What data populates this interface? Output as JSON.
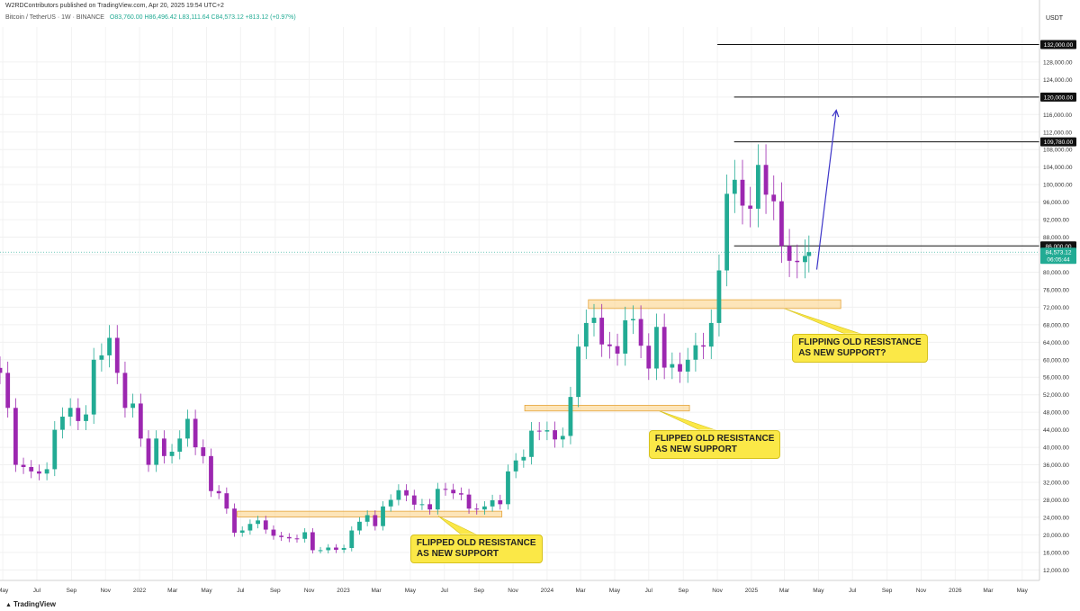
{
  "header": {
    "published": "W2RDContributors published on TradingView.com, Apr 20, 2025 19:54 UTC+2",
    "symbol": "Bitcoin / TetherUS · 1W · BINANCE",
    "ohlc": "O83,760.00 H86,496.42 L83,111.64 C84,573.12 +813.12 (+0.97%)"
  },
  "colors": {
    "up": "#22ab94",
    "down": "#9c27b0",
    "zone": "#fbd38a",
    "callout": "#fbe847",
    "arrow": "#3d35c8"
  },
  "footer": {
    "logo": "TradingView"
  },
  "chart_data": {
    "type": "candlestick",
    "currency_label": "USDT",
    "ylim": [
      9600,
      136000
    ],
    "y_ticks": [
      12000,
      16000,
      20000,
      24000,
      28000,
      32000,
      36000,
      40000,
      44000,
      48000,
      52000,
      56000,
      60000,
      64000,
      68000,
      72000,
      76000,
      80000,
      84000,
      88000,
      92000,
      96000,
      100000,
      104000,
      108000,
      112000,
      116000,
      120000,
      124000,
      128000
    ],
    "y_tick_labels": [
      "12,000.00",
      "16,000.00",
      "20,000.00",
      "24,000.00",
      "28,000.00",
      "32,000.00",
      "36,000.00",
      "40,000.00",
      "44,000.00",
      "48,000.00",
      "52,000.00",
      "56,000.00",
      "60,000.00",
      "64,000.00",
      "68,000.00",
      "72,000.00",
      "76,000.00",
      "80,000.00",
      "84,000.00",
      "88,000.00",
      "92,000.00",
      "96,000.00",
      "100,000.00",
      "104,000.00",
      "108,000.00",
      "112,000.00",
      "116,000.00",
      "120,000.00",
      "124,000.00",
      "128,000.00"
    ],
    "x_range": [
      "2021-04-26",
      "2026-06-01"
    ],
    "x_ticks": [
      {
        "date": "2021-05-01",
        "label": "May"
      },
      {
        "date": "2021-07-01",
        "label": "Jul"
      },
      {
        "date": "2021-09-01",
        "label": "Sep"
      },
      {
        "date": "2021-11-01",
        "label": "Nov"
      },
      {
        "date": "2022-01-01",
        "label": "2022"
      },
      {
        "date": "2022-03-01",
        "label": "Mar"
      },
      {
        "date": "2022-05-01",
        "label": "May"
      },
      {
        "date": "2022-07-01",
        "label": "Jul"
      },
      {
        "date": "2022-09-01",
        "label": "Sep"
      },
      {
        "date": "2022-11-01",
        "label": "Nov"
      },
      {
        "date": "2023-01-01",
        "label": "2023"
      },
      {
        "date": "2023-03-01",
        "label": "Mar"
      },
      {
        "date": "2023-05-01",
        "label": "May"
      },
      {
        "date": "2023-07-01",
        "label": "Jul"
      },
      {
        "date": "2023-09-01",
        "label": "Sep"
      },
      {
        "date": "2023-11-01",
        "label": "Nov"
      },
      {
        "date": "2024-01-01",
        "label": "2024"
      },
      {
        "date": "2024-03-01",
        "label": "Mar"
      },
      {
        "date": "2024-05-01",
        "label": "May"
      },
      {
        "date": "2024-07-01",
        "label": "Jul"
      },
      {
        "date": "2024-09-01",
        "label": "Sep"
      },
      {
        "date": "2024-11-01",
        "label": "Nov"
      },
      {
        "date": "2025-01-01",
        "label": "2025"
      },
      {
        "date": "2025-03-01",
        "label": "Mar"
      },
      {
        "date": "2025-05-01",
        "label": "May"
      },
      {
        "date": "2025-07-01",
        "label": "Jul"
      },
      {
        "date": "2025-09-01",
        "label": "Sep"
      },
      {
        "date": "2025-11-01",
        "label": "Nov"
      },
      {
        "date": "2026-01-01",
        "label": "2026"
      },
      {
        "date": "2026-03-01",
        "label": "Mar"
      },
      {
        "date": "2026-05-01",
        "label": "May"
      }
    ],
    "series": [
      {
        "date": "2021-04-26",
        "close": 57000
      },
      {
        "date": "2021-05-10",
        "close": 49000
      },
      {
        "date": "2021-05-24",
        "close": 36000
      },
      {
        "date": "2021-06-07",
        "close": 35500
      },
      {
        "date": "2021-06-21",
        "close": 34500
      },
      {
        "date": "2021-07-05",
        "close": 34000
      },
      {
        "date": "2021-07-19",
        "close": 35000
      },
      {
        "date": "2021-08-02",
        "close": 44000
      },
      {
        "date": "2021-08-16",
        "close": 47000
      },
      {
        "date": "2021-08-30",
        "close": 49000
      },
      {
        "date": "2021-09-13",
        "close": 46000
      },
      {
        "date": "2021-09-27",
        "close": 47500
      },
      {
        "date": "2021-10-11",
        "close": 60000
      },
      {
        "date": "2021-10-25",
        "close": 61000
      },
      {
        "date": "2021-11-08",
        "close": 65000
      },
      {
        "date": "2021-11-22",
        "close": 57000
      },
      {
        "date": "2021-12-06",
        "close": 49000
      },
      {
        "date": "2021-12-20",
        "close": 50000
      },
      {
        "date": "2022-01-03",
        "close": 42000
      },
      {
        "date": "2022-01-17",
        "close": 36000
      },
      {
        "date": "2022-01-31",
        "close": 42000
      },
      {
        "date": "2022-02-14",
        "close": 38000
      },
      {
        "date": "2022-02-28",
        "close": 39000
      },
      {
        "date": "2022-03-14",
        "close": 42000
      },
      {
        "date": "2022-03-28",
        "close": 46500
      },
      {
        "date": "2022-04-11",
        "close": 40000
      },
      {
        "date": "2022-04-25",
        "close": 38000
      },
      {
        "date": "2022-05-09",
        "close": 30000
      },
      {
        "date": "2022-05-23",
        "close": 29500
      },
      {
        "date": "2022-06-06",
        "close": 26000
      },
      {
        "date": "2022-06-20",
        "close": 20500
      },
      {
        "date": "2022-07-04",
        "close": 21000
      },
      {
        "date": "2022-07-18",
        "close": 22500
      },
      {
        "date": "2022-08-01",
        "close": 23300
      },
      {
        "date": "2022-08-15",
        "close": 21200
      },
      {
        "date": "2022-08-29",
        "close": 19800
      },
      {
        "date": "2022-09-12",
        "close": 19500
      },
      {
        "date": "2022-09-26",
        "close": 19200
      },
      {
        "date": "2022-10-10",
        "close": 19100
      },
      {
        "date": "2022-10-24",
        "close": 20600
      },
      {
        "date": "2022-11-07",
        "close": 16500
      },
      {
        "date": "2022-11-21",
        "close": 16500
      },
      {
        "date": "2022-12-05",
        "close": 17100
      },
      {
        "date": "2022-12-19",
        "close": 16600
      },
      {
        "date": "2023-01-02",
        "close": 17000
      },
      {
        "date": "2023-01-16",
        "close": 21000
      },
      {
        "date": "2023-01-30",
        "close": 23000
      },
      {
        "date": "2023-02-13",
        "close": 24500
      },
      {
        "date": "2023-02-27",
        "close": 22000
      },
      {
        "date": "2023-03-13",
        "close": 26500
      },
      {
        "date": "2023-03-27",
        "close": 28000
      },
      {
        "date": "2023-04-10",
        "close": 30200
      },
      {
        "date": "2023-04-24",
        "close": 29000
      },
      {
        "date": "2023-05-08",
        "close": 26900
      },
      {
        "date": "2023-05-22",
        "close": 27000
      },
      {
        "date": "2023-06-05",
        "close": 25800
      },
      {
        "date": "2023-06-19",
        "close": 30500
      },
      {
        "date": "2023-07-03",
        "close": 30300
      },
      {
        "date": "2023-07-17",
        "close": 29500
      },
      {
        "date": "2023-07-31",
        "close": 29200
      },
      {
        "date": "2023-08-14",
        "close": 26000
      },
      {
        "date": "2023-08-28",
        "close": 25800
      },
      {
        "date": "2023-09-11",
        "close": 26500
      },
      {
        "date": "2023-09-25",
        "close": 27900
      },
      {
        "date": "2023-10-09",
        "close": 27000
      },
      {
        "date": "2023-10-23",
        "close": 34500
      },
      {
        "date": "2023-11-06",
        "close": 37000
      },
      {
        "date": "2023-11-20",
        "close": 37800
      },
      {
        "date": "2023-12-04",
        "close": 43800
      },
      {
        "date": "2023-12-18",
        "close": 43600
      },
      {
        "date": "2024-01-01",
        "close": 43900
      },
      {
        "date": "2024-01-15",
        "close": 41800
      },
      {
        "date": "2024-01-29",
        "close": 42600
      },
      {
        "date": "2024-02-12",
        "close": 51500
      },
      {
        "date": "2024-02-26",
        "close": 63000
      },
      {
        "date": "2024-03-11",
        "close": 68400
      },
      {
        "date": "2024-03-25",
        "close": 69600
      },
      {
        "date": "2024-04-08",
        "close": 63500
      },
      {
        "date": "2024-04-22",
        "close": 63100
      },
      {
        "date": "2024-05-06",
        "close": 61400
      },
      {
        "date": "2024-05-20",
        "close": 69000
      },
      {
        "date": "2024-06-03",
        "close": 69300
      },
      {
        "date": "2024-06-17",
        "close": 63200
      },
      {
        "date": "2024-07-01",
        "close": 58000
      },
      {
        "date": "2024-07-15",
        "close": 67500
      },
      {
        "date": "2024-07-29",
        "close": 58200
      },
      {
        "date": "2024-08-12",
        "close": 59000
      },
      {
        "date": "2024-08-26",
        "close": 57300
      },
      {
        "date": "2024-09-09",
        "close": 60000
      },
      {
        "date": "2024-09-23",
        "close": 63300
      },
      {
        "date": "2024-10-07",
        "close": 63000
      },
      {
        "date": "2024-10-21",
        "close": 68400
      },
      {
        "date": "2024-11-04",
        "close": 80400
      },
      {
        "date": "2024-11-18",
        "close": 97900
      },
      {
        "date": "2024-12-02",
        "close": 101100
      },
      {
        "date": "2024-12-16",
        "close": 95200
      },
      {
        "date": "2024-12-30",
        "close": 94500
      },
      {
        "date": "2025-01-13",
        "close": 104500
      },
      {
        "date": "2025-01-27",
        "close": 97700
      },
      {
        "date": "2025-02-10",
        "close": 96200
      },
      {
        "date": "2025-02-24",
        "close": 86000
      },
      {
        "date": "2025-03-10",
        "close": 82600
      },
      {
        "date": "2025-03-24",
        "close": 82300
      },
      {
        "date": "2025-04-07",
        "close": 83700
      },
      {
        "date": "2025-04-14",
        "close": 84573
      }
    ],
    "price_lines": [
      {
        "price": 132000,
        "label": "132,000.00",
        "start": "2024-11-01"
      },
      {
        "price": 120000,
        "label": "120,000.00",
        "start": "2024-12-01"
      },
      {
        "price": 109780,
        "label": "109,780.00",
        "start": "2024-12-01"
      },
      {
        "price": 86000,
        "label": "86,000.00",
        "start": "2024-12-01"
      }
    ],
    "current_price": {
      "price": 84573.12,
      "label": "84,573.12",
      "countdown": "06:05:44"
    },
    "zones": [
      {
        "start": "2022-06-25",
        "end": "2023-10-12",
        "low": 24100,
        "high": 25400
      },
      {
        "start": "2023-11-22",
        "end": "2024-09-12",
        "low": 48300,
        "high": 49600
      },
      {
        "start": "2024-03-15",
        "end": "2025-06-10",
        "low": 71700,
        "high": 73700
      }
    ],
    "arrow": {
      "from_date": "2025-04-28",
      "from_price": 80600,
      "to_date": "2025-06-02",
      "to_price": 117000
    },
    "annotations": [
      {
        "text_lines": [
          "FLIPPED OLD RESISTANCE",
          "AS NEW SUPPORT"
        ],
        "anchor_date": "2023-06-20",
        "anchor_price": 24300,
        "box_date": "2023-05-01",
        "box_price": 20000
      },
      {
        "text_lines": [
          "FLIPPED OLD RESISTANCE",
          "AS NEW SUPPORT"
        ],
        "anchor_date": "2024-07-20",
        "anchor_price": 48300,
        "box_date": "2024-07-01",
        "box_price": 44000
      },
      {
        "text_lines": [
          "FLIPPING OLD RESISTANCE",
          "AS NEW SUPPORT?"
        ],
        "anchor_date": "2025-03-01",
        "anchor_price": 71700,
        "box_date": "2025-03-15",
        "box_price": 66000
      }
    ]
  }
}
